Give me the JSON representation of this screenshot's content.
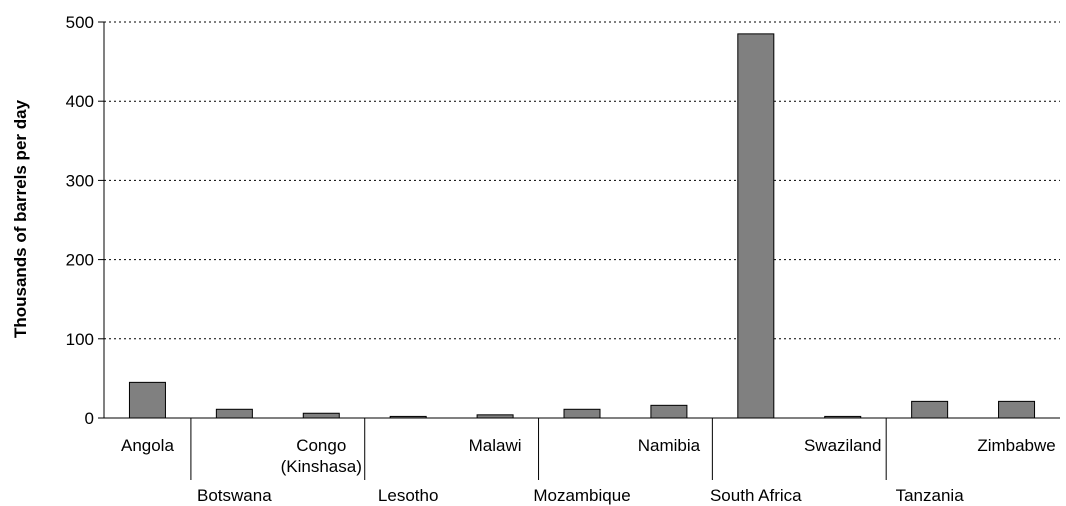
{
  "chart_data": {
    "type": "bar",
    "ylabel": "Thousands of barrels per day",
    "xlabel": "",
    "ylim": [
      0,
      500
    ],
    "yticks": [
      0,
      100,
      200,
      300,
      400,
      500
    ],
    "grid": true,
    "categories": [
      {
        "name": "Angola",
        "lines": [
          "Angola"
        ],
        "row": 0
      },
      {
        "name": "Botswana",
        "lines": [
          "Botswana"
        ],
        "row": 1
      },
      {
        "name": "Congo (Kinshasa)",
        "lines": [
          "Congo",
          "(Kinshasa)"
        ],
        "row": 0
      },
      {
        "name": "Lesotho",
        "lines": [
          "Lesotho"
        ],
        "row": 1
      },
      {
        "name": "Malawi",
        "lines": [
          "Malawi"
        ],
        "row": 0
      },
      {
        "name": "Mozambique",
        "lines": [
          "Mozambique"
        ],
        "row": 1
      },
      {
        "name": "Namibia",
        "lines": [
          "Namibia"
        ],
        "row": 0
      },
      {
        "name": "South Africa",
        "lines": [
          "South Africa"
        ],
        "row": 1
      },
      {
        "name": "Swaziland",
        "lines": [
          "Swaziland"
        ],
        "row": 0,
        "emphasis": true
      },
      {
        "name": "Tanzania",
        "lines": [
          "Tanzania"
        ],
        "row": 1
      },
      {
        "name": "Zimbabwe",
        "lines": [
          "Zimbabwe"
        ],
        "row": 0
      }
    ],
    "values": [
      45,
      11,
      6,
      2,
      4,
      11,
      16,
      485,
      2,
      21,
      21
    ],
    "bar_color": "#808080"
  }
}
